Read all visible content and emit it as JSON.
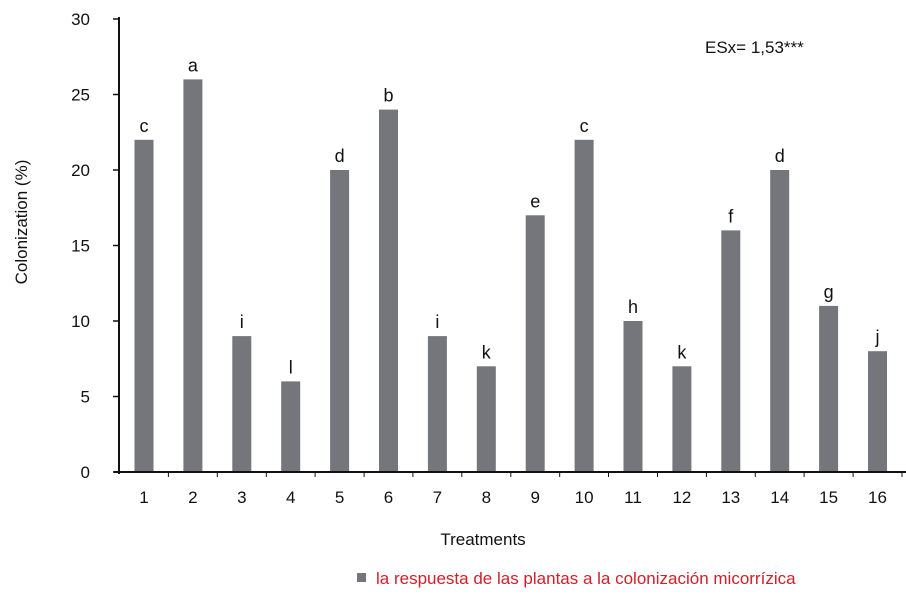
{
  "chart_data": {
    "type": "bar",
    "categories": [
      "1",
      "2",
      "3",
      "4",
      "5",
      "6",
      "7",
      "8",
      "9",
      "10",
      "11",
      "12",
      "13",
      "14",
      "15",
      "16"
    ],
    "values": [
      22,
      26,
      9,
      6,
      20,
      24,
      9,
      7,
      17,
      22,
      10,
      7,
      16,
      20,
      11,
      8
    ],
    "significance_letters": [
      "c",
      "a",
      "i",
      "l",
      "d",
      "b",
      "i",
      "k",
      "e",
      "c",
      "h",
      "k",
      "f",
      "d",
      "g",
      "j"
    ],
    "xlabel": "Treatments",
    "ylabel": "Colonization (%)",
    "ylim": [
      0,
      30
    ],
    "yticks": [
      0,
      5,
      10,
      15,
      20,
      25,
      30
    ],
    "annotation": "ESx= 1,53***",
    "grid": false,
    "legend": {
      "placement": "bottom",
      "label": "la respuesta de las plantas a la colonización micorrízica",
      "text_color": "#d0202a"
    },
    "bar_color": "#75767b",
    "axis_color": "#111111"
  }
}
